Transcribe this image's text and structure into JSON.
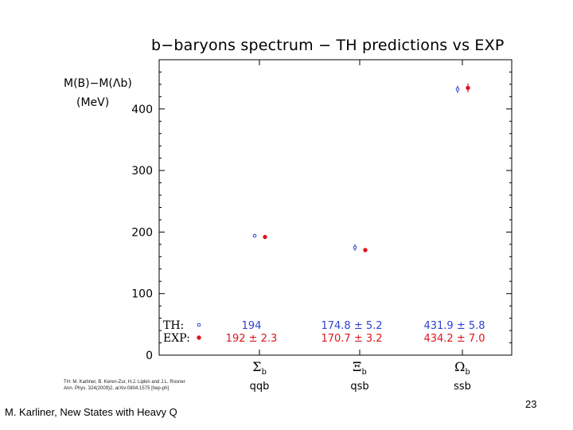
{
  "slide": {
    "footer": "M. Karliner, New States with Heavy Q",
    "page_number": "23",
    "reference_line1": "TH: M. Karliner, B. Keren-Zur, H.J. Lipkin and J.L. Rosner",
    "reference_line2": "Ann. Phys. 324(2009)2, arXiv:0804.1575 [hep-ph]"
  },
  "chart_data": {
    "type": "scatter",
    "title": "b−baryons spectrum − TH predictions vs EXP",
    "ylabel_line1": "M(B)−M(Λb)",
    "ylabel_line2": "(MeV)",
    "ylim": [
      0,
      480
    ],
    "yticks": [
      0,
      100,
      200,
      300,
      400
    ],
    "categories": [
      {
        "symbol": "Σ",
        "sub": "b",
        "quarks": "qqb"
      },
      {
        "symbol": "Ξ",
        "sub": "b",
        "quarks": "qsb"
      },
      {
        "symbol": "Ω",
        "sub": "b",
        "quarks": "ssb"
      }
    ],
    "series": [
      {
        "name": "TH:",
        "marker": "open-circle",
        "color": "#2f3fd0",
        "values": [
          194,
          174.8,
          431.9
        ],
        "errors": [
          0,
          5.2,
          5.8
        ],
        "labels": [
          "194",
          "174.8 ± 5.2",
          "431.9 ± 5.8"
        ]
      },
      {
        "name": "EXP:",
        "marker": "filled-circle",
        "color": "#e0141e",
        "values": [
          192,
          170.7,
          434.2
        ],
        "errors": [
          2.3,
          3.2,
          7.0
        ],
        "labels": [
          "192 ± 2.3",
          "170.7 ± 3.2",
          "434.2 ± 7.0"
        ]
      }
    ]
  }
}
